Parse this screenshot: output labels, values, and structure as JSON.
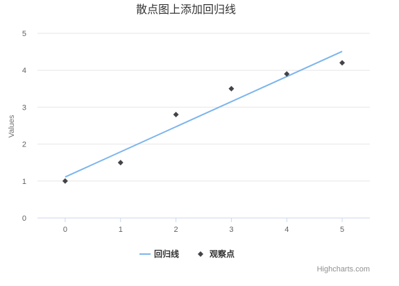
{
  "chart_data": {
    "type": "scatter",
    "title": "散点图上添加回归线",
    "xlabel": "",
    "ylabel": "Values",
    "xlim": [
      -0.5,
      5.5
    ],
    "ylim": [
      0,
      5
    ],
    "xticks": [
      0,
      1,
      2,
      3,
      4,
      5
    ],
    "yticks": [
      0,
      1,
      2,
      3,
      4,
      5
    ],
    "grid": "horizontal",
    "legend_position": "bottom-center",
    "series": [
      {
        "name": "回归线",
        "type": "line",
        "color": "#7cb5ec",
        "points": [
          [
            0,
            1.11
          ],
          [
            5,
            4.51
          ]
        ]
      },
      {
        "name": "观察点",
        "type": "scatter",
        "marker": "diamond",
        "color": "#434348",
        "points": [
          [
            0,
            1.0
          ],
          [
            1,
            1.5
          ],
          [
            2,
            2.8
          ],
          [
            3,
            3.5
          ],
          [
            4,
            3.9
          ],
          [
            5,
            4.2
          ]
        ]
      }
    ]
  },
  "credits": "Highcharts.com",
  "colors": {
    "grid": "#e6e6e6",
    "axis": "#ccd6eb"
  }
}
